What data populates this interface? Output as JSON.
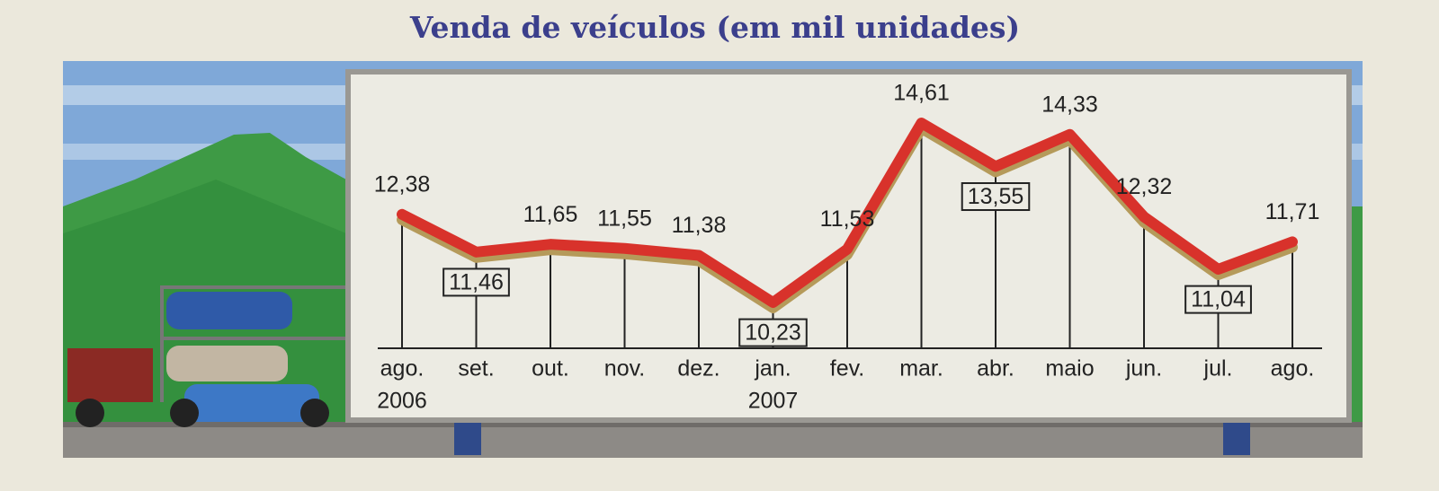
{
  "chart_data": {
    "type": "line",
    "title": "Venda de veículos (em mil unidades)",
    "categories": [
      "ago.",
      "set.",
      "out.",
      "nov.",
      "dez.",
      "jan.",
      "fev.",
      "mar.",
      "abr.",
      "maio",
      "jun.",
      "jul.",
      "ago."
    ],
    "category_years": [
      "2006",
      null,
      null,
      null,
      null,
      "2007",
      null,
      null,
      null,
      null,
      null,
      null,
      null
    ],
    "values": [
      12.38,
      11.46,
      11.65,
      11.55,
      11.38,
      10.23,
      11.53,
      14.61,
      13.55,
      14.33,
      12.32,
      11.04,
      11.71
    ],
    "value_labels": [
      "12,38",
      "11,46",
      "11,65",
      "11,55",
      "11,38",
      "10,23",
      "11,53",
      "14,61",
      "13,55",
      "14,33",
      "12,32",
      "11,04",
      "11,71"
    ],
    "color": "#d8322b"
  }
}
